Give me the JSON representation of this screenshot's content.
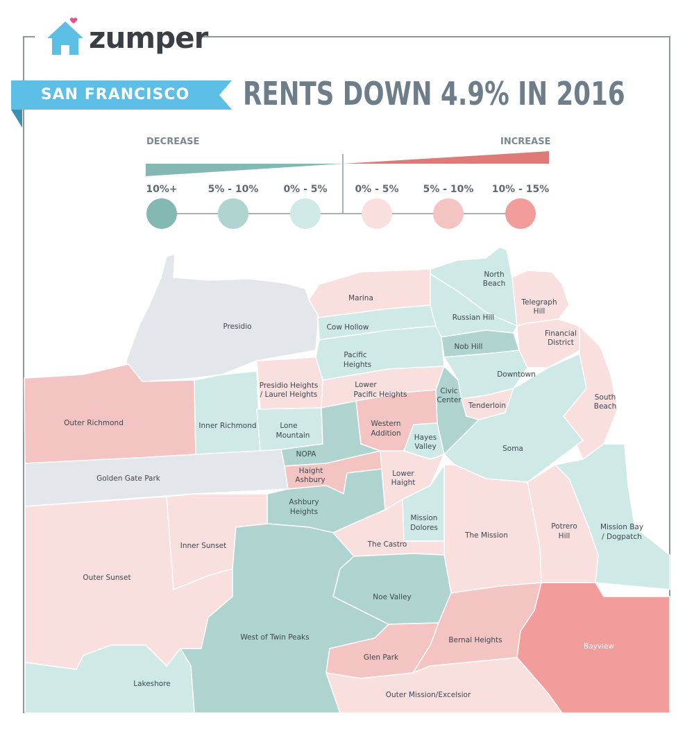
{
  "brand": {
    "name": "zumper"
  },
  "city_label": "SAN FRANCISCO",
  "headline": "RENTS DOWN 4.9% IN 2016",
  "legend": {
    "decrease_label": "DECREASE",
    "increase_label": "INCREASE",
    "ranges": [
      {
        "label": "10%+",
        "color": "#84b8b2"
      },
      {
        "label": "5% - 10%",
        "color": "#afd4d0"
      },
      {
        "label": "0% - 5%",
        "color": "#cfeae6"
      },
      {
        "label": "0% - 5%",
        "color": "#f9e0de"
      },
      {
        "label": "5% - 10%",
        "color": "#f4c4c3"
      },
      {
        "label": "10% - 15%",
        "color": "#f29c9b"
      }
    ]
  },
  "colors": {
    "ribbon": "#5ebfe6",
    "ribbon_dark": "#3a8fb5",
    "headline": "#6e7d8a",
    "no_data": "#e3e6ea",
    "border": "#8a97a3"
  },
  "neighborhoods": [
    "Presidio",
    "Marina",
    "North Beach",
    "Russian Hill",
    "Telegraph Hill",
    "Cow Hollow",
    "Financial District",
    "Pacific Heights",
    "Nob Hill",
    "Downtown",
    "Presidio Heights / Laurel Heights",
    "Lower Pacific Heights",
    "Civic Center",
    "Tenderloin",
    "South Beach",
    "Outer Richmond",
    "Inner Richmond",
    "Lone Mountain",
    "Western Addition",
    "Hayes Valley",
    "Soma",
    "NOPA",
    "Golden Gate Park",
    "Haight Ashbury",
    "Lower Haight",
    "Ashbury Heights",
    "Mission Dolores",
    "Potrero Hill",
    "Mission Bay / Dogpatch",
    "Inner Sunset",
    "The Mission",
    "The Castro",
    "Outer Sunset",
    "Noe Valley",
    "West of Twin Peaks",
    "Bernal Heights",
    "Bayview",
    "Glen Park",
    "Lakeshore",
    "Outer Mission/Excelsior"
  ]
}
